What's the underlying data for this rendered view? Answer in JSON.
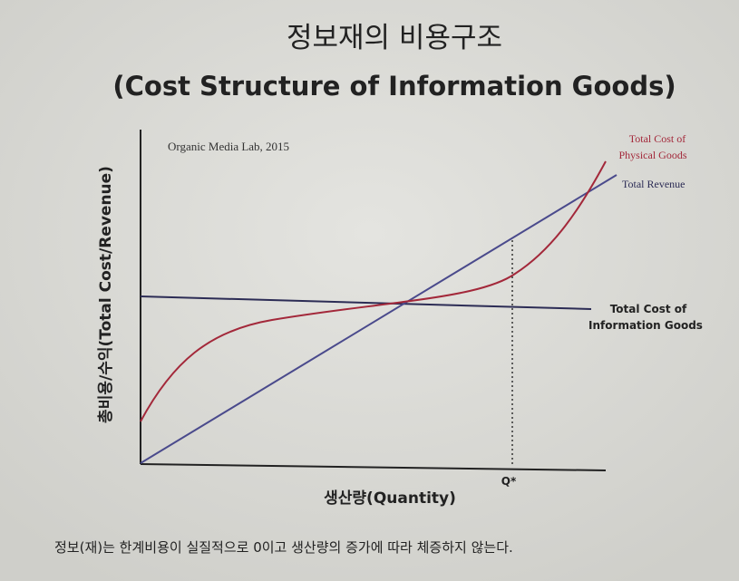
{
  "header": {
    "title": "정보재의 비용구조",
    "subtitle": "(Cost Structure of Information Goods)"
  },
  "diagram": {
    "source": "Organic Media Lab, 2015",
    "y_axis_label": "총비용/수익(Total Cost/Revenue)",
    "x_axis_label": "생산량(Quantity)",
    "physical_cost_label": [
      "Total Cost of",
      "Physical Goods"
    ],
    "revenue_label": "Total Revenue",
    "information_cost_label": [
      "Total Cost of",
      "Information Goods"
    ],
    "q_star": "Q*"
  },
  "caption": "정보(재)는 한계비용이 실질적으로 0이고 생산량의 증가에 따라 체증하지 않는다."
}
